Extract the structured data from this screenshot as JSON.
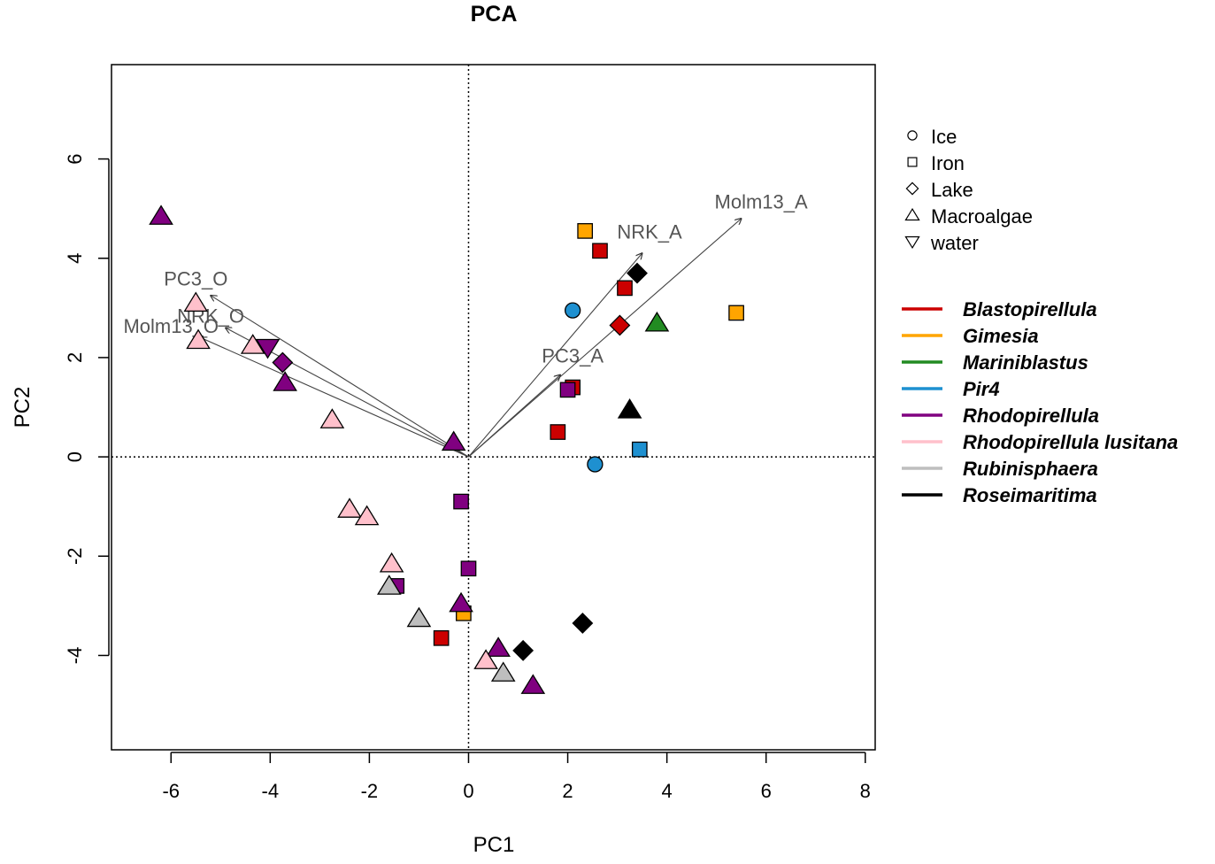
{
  "chart_data": {
    "type": "scatter",
    "title": "PCA",
    "xlabel": "PC1",
    "ylabel": "PC2",
    "xlim": [
      -7.2,
      8.2
    ],
    "ylim": [
      -5.9,
      7.9
    ],
    "xticks": [
      -6,
      -4,
      -2,
      0,
      2,
      4,
      6,
      8
    ],
    "yticks": [
      -4,
      -2,
      0,
      2,
      4,
      6
    ],
    "xtick_labels": [
      "-6",
      "-4",
      "-2",
      "0",
      "2",
      "4",
      "6",
      "8"
    ],
    "ytick_labels": [
      "-4",
      "-2",
      "0",
      "2",
      "4",
      "6"
    ],
    "reference_lines": {
      "x": 0,
      "y": 0,
      "style": "dotted"
    },
    "shape_legend": [
      {
        "label": "Ice",
        "shape": "circle"
      },
      {
        "label": "Iron",
        "shape": "square"
      },
      {
        "label": "Lake",
        "shape": "diamond"
      },
      {
        "label": "Macroalgae",
        "shape": "triangle"
      },
      {
        "label": "water",
        "shape": "triangle-down"
      }
    ],
    "color_legend": [
      {
        "label": "Blastopirellula",
        "color": "#cc0000"
      },
      {
        "label": "Gimesia",
        "color": "#ffa500"
      },
      {
        "label": "Mariniblastus",
        "color": "#228b22"
      },
      {
        "label": "Pir4",
        "color": "#1e90d0"
      },
      {
        "label": "Rhodopirellula",
        "color": "#800080"
      },
      {
        "label": "Rhodopirellula lusitana",
        "color": "#ffc0cb"
      },
      {
        "label": "Rubinisphaera",
        "color": "#bebebe"
      },
      {
        "label": "Roseimaritima",
        "color": "#000000"
      }
    ],
    "vectors": [
      {
        "label": "Molm13_A",
        "x": 5.5,
        "y": 4.8,
        "lx": 5.9,
        "ly": 5.0
      },
      {
        "label": "NRK_A",
        "x": 3.5,
        "y": 4.1,
        "lx": 3.65,
        "ly": 4.4
      },
      {
        "label": "PC3_A",
        "x": 1.85,
        "y": 1.65,
        "lx": 2.1,
        "ly": 1.9
      },
      {
        "label": "PC3_O",
        "x": -5.2,
        "y": 3.25,
        "lx": -5.5,
        "ly": 3.45
      },
      {
        "label": "NRK_O",
        "x": -4.9,
        "y": 2.6,
        "lx": -5.2,
        "ly": 2.7
      },
      {
        "label": "Molm13_O",
        "x": -5.4,
        "y": 2.4,
        "lx": -6.0,
        "ly": 2.5
      }
    ],
    "series": [
      {
        "name": "Blastopirellula",
        "color": "#cc0000",
        "points": [
          {
            "x": 2.65,
            "y": 4.15,
            "shape": "square"
          },
          {
            "x": 3.15,
            "y": 3.4,
            "shape": "square"
          },
          {
            "x": 3.05,
            "y": 2.65,
            "shape": "diamond"
          },
          {
            "x": 2.1,
            "y": 1.4,
            "shape": "square"
          },
          {
            "x": 1.8,
            "y": 0.5,
            "shape": "square"
          },
          {
            "x": -0.55,
            "y": -3.65,
            "shape": "square"
          }
        ]
      },
      {
        "name": "Gimesia",
        "color": "#ffa500",
        "points": [
          {
            "x": 2.35,
            "y": 4.55,
            "shape": "square"
          },
          {
            "x": 5.4,
            "y": 2.9,
            "shape": "square"
          },
          {
            "x": -0.1,
            "y": -3.15,
            "shape": "square"
          }
        ]
      },
      {
        "name": "Mariniblastus",
        "color": "#228b22",
        "points": [
          {
            "x": 3.8,
            "y": 2.7,
            "shape": "triangle"
          }
        ]
      },
      {
        "name": "Pir4",
        "color": "#1e90d0",
        "points": [
          {
            "x": 2.1,
            "y": 2.95,
            "shape": "circle"
          },
          {
            "x": 2.55,
            "y": -0.15,
            "shape": "circle"
          },
          {
            "x": 3.45,
            "y": 0.15,
            "shape": "square"
          }
        ]
      },
      {
        "name": "Rhodopirellula",
        "color": "#800080",
        "points": [
          {
            "x": -6.2,
            "y": 4.85,
            "shape": "triangle"
          },
          {
            "x": -4.05,
            "y": 2.2,
            "shape": "triangle-down"
          },
          {
            "x": -3.75,
            "y": 1.9,
            "shape": "diamond"
          },
          {
            "x": -3.7,
            "y": 1.5,
            "shape": "triangle"
          },
          {
            "x": -0.3,
            "y": 0.3,
            "shape": "triangle"
          },
          {
            "x": 2.0,
            "y": 1.35,
            "shape": "square"
          },
          {
            "x": -0.15,
            "y": -0.9,
            "shape": "square"
          },
          {
            "x": 0.0,
            "y": -2.25,
            "shape": "square"
          },
          {
            "x": -1.45,
            "y": -2.6,
            "shape": "square"
          },
          {
            "x": -0.15,
            "y": -2.95,
            "shape": "triangle"
          },
          {
            "x": 0.6,
            "y": -3.85,
            "shape": "triangle"
          },
          {
            "x": 1.3,
            "y": -4.6,
            "shape": "triangle"
          }
        ]
      },
      {
        "name": "Rhodopirellula lusitana",
        "color": "#ffc0cb",
        "points": [
          {
            "x": -5.5,
            "y": 3.1,
            "shape": "triangle"
          },
          {
            "x": -5.45,
            "y": 2.35,
            "shape": "triangle"
          },
          {
            "x": -4.35,
            "y": 2.25,
            "shape": "triangle"
          },
          {
            "x": -2.75,
            "y": 0.75,
            "shape": "triangle"
          },
          {
            "x": -2.4,
            "y": -1.05,
            "shape": "triangle"
          },
          {
            "x": -2.05,
            "y": -1.2,
            "shape": "triangle"
          },
          {
            "x": -1.55,
            "y": -2.15,
            "shape": "triangle"
          },
          {
            "x": 0.35,
            "y": -4.1,
            "shape": "triangle"
          }
        ]
      },
      {
        "name": "Rubinisphaera",
        "color": "#bebebe",
        "points": [
          {
            "x": -1.6,
            "y": -2.6,
            "shape": "triangle"
          },
          {
            "x": -1.0,
            "y": -3.25,
            "shape": "triangle"
          },
          {
            "x": 0.7,
            "y": -4.35,
            "shape": "triangle"
          }
        ]
      },
      {
        "name": "Roseimaritima",
        "color": "#000000",
        "points": [
          {
            "x": 3.4,
            "y": 3.7,
            "shape": "diamond"
          },
          {
            "x": 3.25,
            "y": 0.95,
            "shape": "triangle"
          },
          {
            "x": 1.1,
            "y": -3.9,
            "shape": "diamond"
          },
          {
            "x": 2.3,
            "y": -3.35,
            "shape": "diamond"
          }
        ]
      }
    ]
  }
}
